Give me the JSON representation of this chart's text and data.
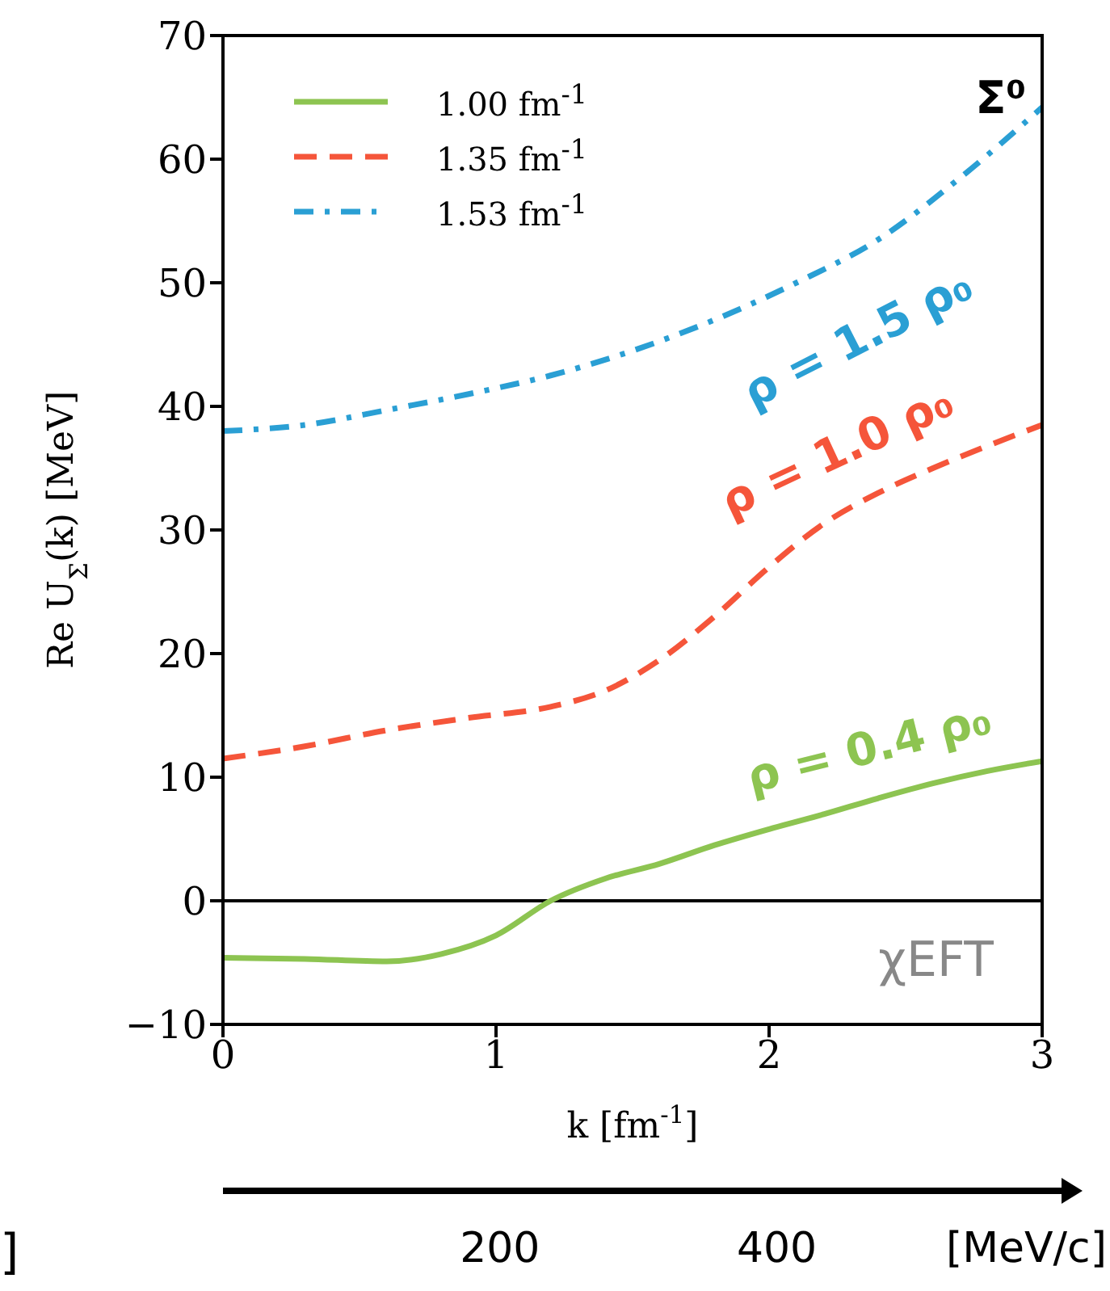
{
  "chart_data": {
    "type": "line",
    "xlabel": "k [fm$^{-1}$]",
    "ylabel": "Re U$_{Σ}$(k) [MeV]",
    "x2label": "[MeV/c]",
    "xlim": [
      0,
      3
    ],
    "xticks": [
      0,
      1,
      2,
      3
    ],
    "ylim": [
      -10,
      70
    ],
    "yticks": [
      -10,
      0,
      10,
      20,
      30,
      40,
      50,
      60,
      70
    ],
    "x2lim": [
      0,
      591.6
    ],
    "x2ticks": [
      200,
      400
    ],
    "grid": false,
    "legend": "top left",
    "marker": "none",
    "series": [
      {
        "name": "1.00 fm$^{-1}$",
        "color": "#8dc451",
        "line_style": "solid",
        "x": [
          0,
          0.3,
          0.6,
          0.8,
          1.0,
          1.2,
          1.4,
          1.6,
          1.8,
          2.0,
          2.2,
          2.4,
          2.6,
          2.8,
          3.0
        ],
        "values": [
          -4.6,
          -4.7,
          -4.9,
          -4.3,
          -2.8,
          0,
          1.8,
          3.0,
          4.5,
          5.8,
          7.0,
          8.3,
          9.5,
          10.5,
          11.3
        ]
      },
      {
        "name": "1.35 fm$^{-1}$",
        "color": "#f5553a",
        "line_style": "dashed",
        "x": [
          0,
          0.3,
          0.6,
          0.9,
          1.2,
          1.4,
          1.6,
          1.8,
          2.0,
          2.2,
          2.4,
          2.6,
          2.8,
          3.0
        ],
        "values": [
          11.5,
          12.5,
          13.8,
          14.8,
          15.7,
          17,
          19.5,
          23,
          27,
          30.5,
          33,
          35,
          36.8,
          38.5
        ]
      },
      {
        "name": "1.53 fm$^{-1}$",
        "color": "#2a9fd4",
        "line_style": "dashdot",
        "x": [
          0,
          0.3,
          0.6,
          0.9,
          1.2,
          1.5,
          1.8,
          2.1,
          2.4,
          2.7,
          3.0
        ],
        "values": [
          38,
          38.5,
          39.7,
          41,
          42.5,
          44.5,
          47,
          50,
          53.5,
          58.5,
          64.2
        ]
      }
    ],
    "ref_lines": [
      {
        "axis": "y",
        "value": 0,
        "color": "#000000"
      }
    ],
    "annotations": [
      "ρ = 0.4 ρ₀",
      "ρ = 1.0 ρ₀",
      "ρ = 1.5 ρ₀",
      "Σ⁰",
      "χEFT",
      "]"
    ]
  }
}
